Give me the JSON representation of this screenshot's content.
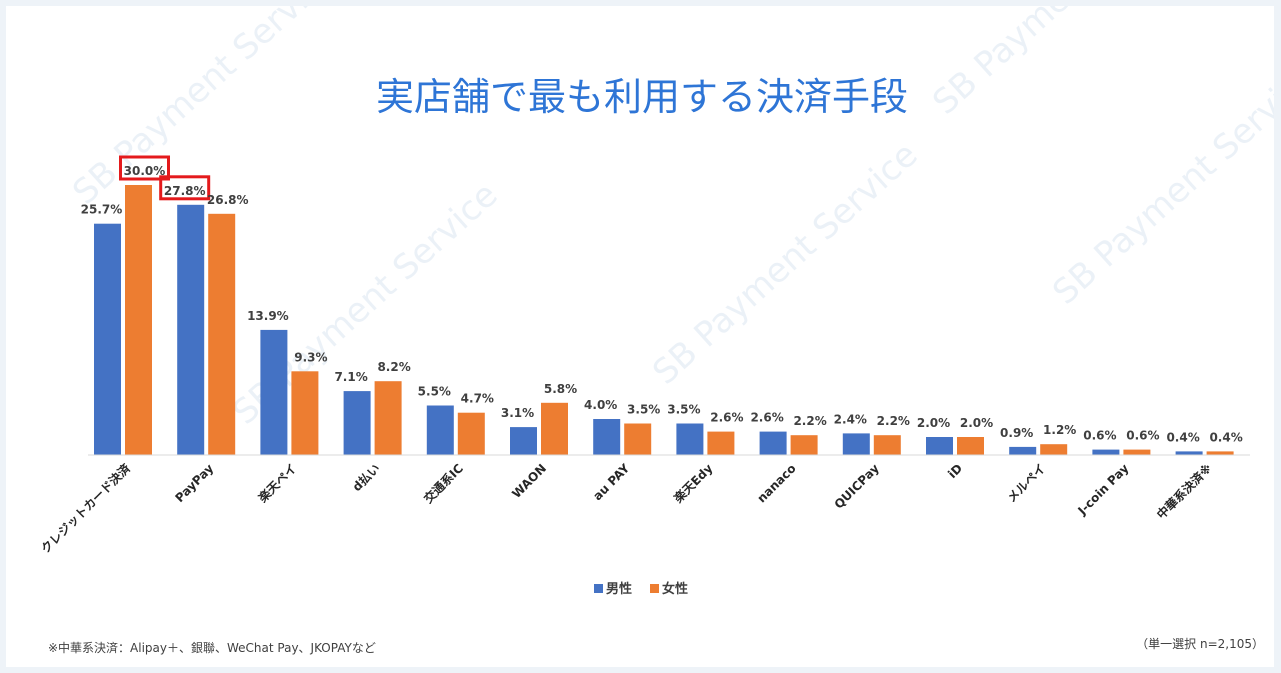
{
  "chart_data": {
    "type": "bar",
    "title": "実店舗で最も利用する決済手段",
    "categories": [
      "クレジットカード決済",
      "PayPay",
      "楽天ペイ",
      "d払い",
      "交通系IC",
      "WAON",
      "au PAY",
      "楽天Edy",
      "nanaco",
      "QUICPay",
      "iD",
      "メルペイ",
      "J-coin Pay",
      "中華系決済※"
    ],
    "series": [
      {
        "name": "男性",
        "color": "#4472c4",
        "values": [
          25.7,
          27.8,
          13.9,
          7.1,
          5.5,
          3.1,
          4.0,
          3.5,
          2.6,
          2.4,
          2.0,
          0.9,
          0.6,
          0.4
        ]
      },
      {
        "name": "女性",
        "color": "#ed7d31",
        "values": [
          30.0,
          26.8,
          9.3,
          8.2,
          4.7,
          5.8,
          3.5,
          2.6,
          2.2,
          2.2,
          2.0,
          1.2,
          0.6,
          0.4
        ]
      }
    ],
    "value_suffix": "%",
    "ylim": [
      0,
      32
    ],
    "highlighted": [
      {
        "series": 1,
        "category": 0
      },
      {
        "series": 0,
        "category": 1
      }
    ],
    "highlight_color": "#e41a1c",
    "legend_position": "bottom",
    "footnote_left": "※中華系決済：Alipay＋、銀聯、WeChat Pay、JKOPAYなど",
    "footnote_right": "（単一選択 n=2,105）",
    "watermark_text": "SB Payment Service"
  }
}
